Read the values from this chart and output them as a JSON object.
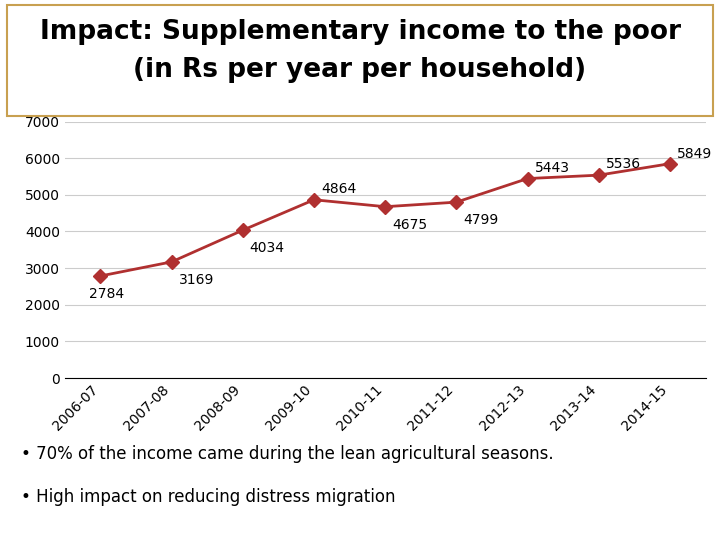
{
  "title_line1": "Impact: Supplementary income to the poor",
  "title_line2": "(in Rs per year per household)",
  "categories": [
    "2006-07",
    "2007-08",
    "2008-09",
    "2009-10",
    "2010-11",
    "2011-12",
    "2012-13",
    "2013-14",
    "2014-15"
  ],
  "values": [
    2784,
    3169,
    4034,
    4864,
    4675,
    4799,
    5443,
    5536,
    5849
  ],
  "line_color": "#b03030",
  "marker_color": "#b03030",
  "ylim": [
    0,
    7000
  ],
  "yticks": [
    0,
    1000,
    2000,
    3000,
    4000,
    5000,
    6000,
    7000
  ],
  "title_fontsize": 19,
  "label_fontsize": 10,
  "annotation_fontsize": 10,
  "bg_color": "#ffffff",
  "plot_bg_color": "#ffffff",
  "footer_bg_color": "#f5c98a",
  "footer_lines": [
    "70% of the income came during the lean agricultural seasons.",
    "High impact on reducing distress migration"
  ],
  "border_color": "#c8a050",
  "grid_color": "#cccccc"
}
